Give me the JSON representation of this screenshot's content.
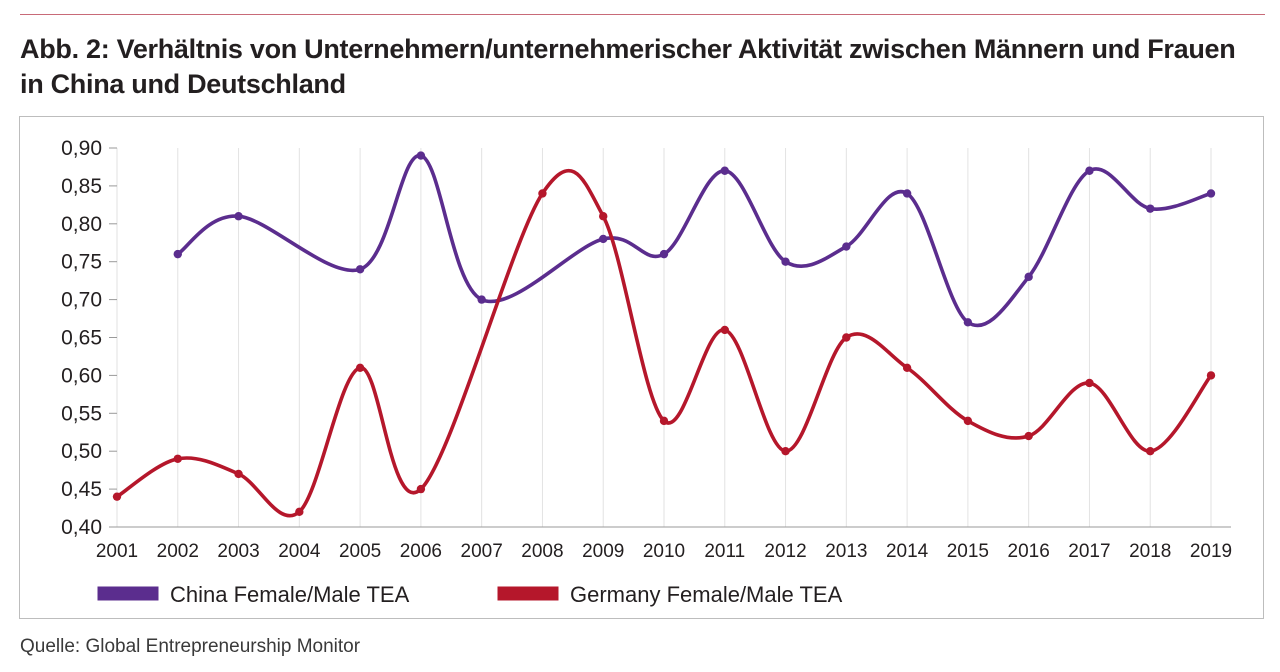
{
  "figure": {
    "title": "Abb. 2: Verhältnis von Unternehmern/unternehmerischer Aktivität zwischen Männern und Frauen in China und Deutschland",
    "source": "Quelle: Global Entrepreneurship Monitor"
  },
  "chart_data": {
    "type": "line",
    "smoothed": true,
    "x": [
      "2001",
      "2002",
      "2003",
      "2004",
      "2005",
      "2006",
      "2007",
      "2008",
      "2009",
      "2010",
      "2011",
      "2012",
      "2013",
      "2014",
      "2015",
      "2016",
      "2017",
      "2018",
      "2019"
    ],
    "yticks": [
      "0,40",
      "0,45",
      "0,50",
      "0,55",
      "0,60",
      "0,65",
      "0,70",
      "0,75",
      "0,80",
      "0,85",
      "0,90"
    ],
    "ylim": [
      0.4,
      0.9
    ],
    "grid": "vertical",
    "legend_position": "bottom-left",
    "series": [
      {
        "name": "China Female/Male TEA",
        "color": "#5b2d8e",
        "values": [
          null,
          0.76,
          0.81,
          null,
          0.74,
          0.89,
          0.7,
          null,
          0.78,
          0.76,
          0.87,
          0.75,
          0.77,
          0.84,
          0.67,
          0.73,
          0.87,
          0.82,
          0.84
        ]
      },
      {
        "name": "Germany Female/Male TEA",
        "color": "#b5172b",
        "values": [
          0.44,
          0.49,
          0.47,
          0.42,
          0.61,
          0.45,
          null,
          0.84,
          0.81,
          0.54,
          0.66,
          0.5,
          0.65,
          0.61,
          0.54,
          0.52,
          0.59,
          0.5,
          0.6
        ]
      }
    ]
  }
}
